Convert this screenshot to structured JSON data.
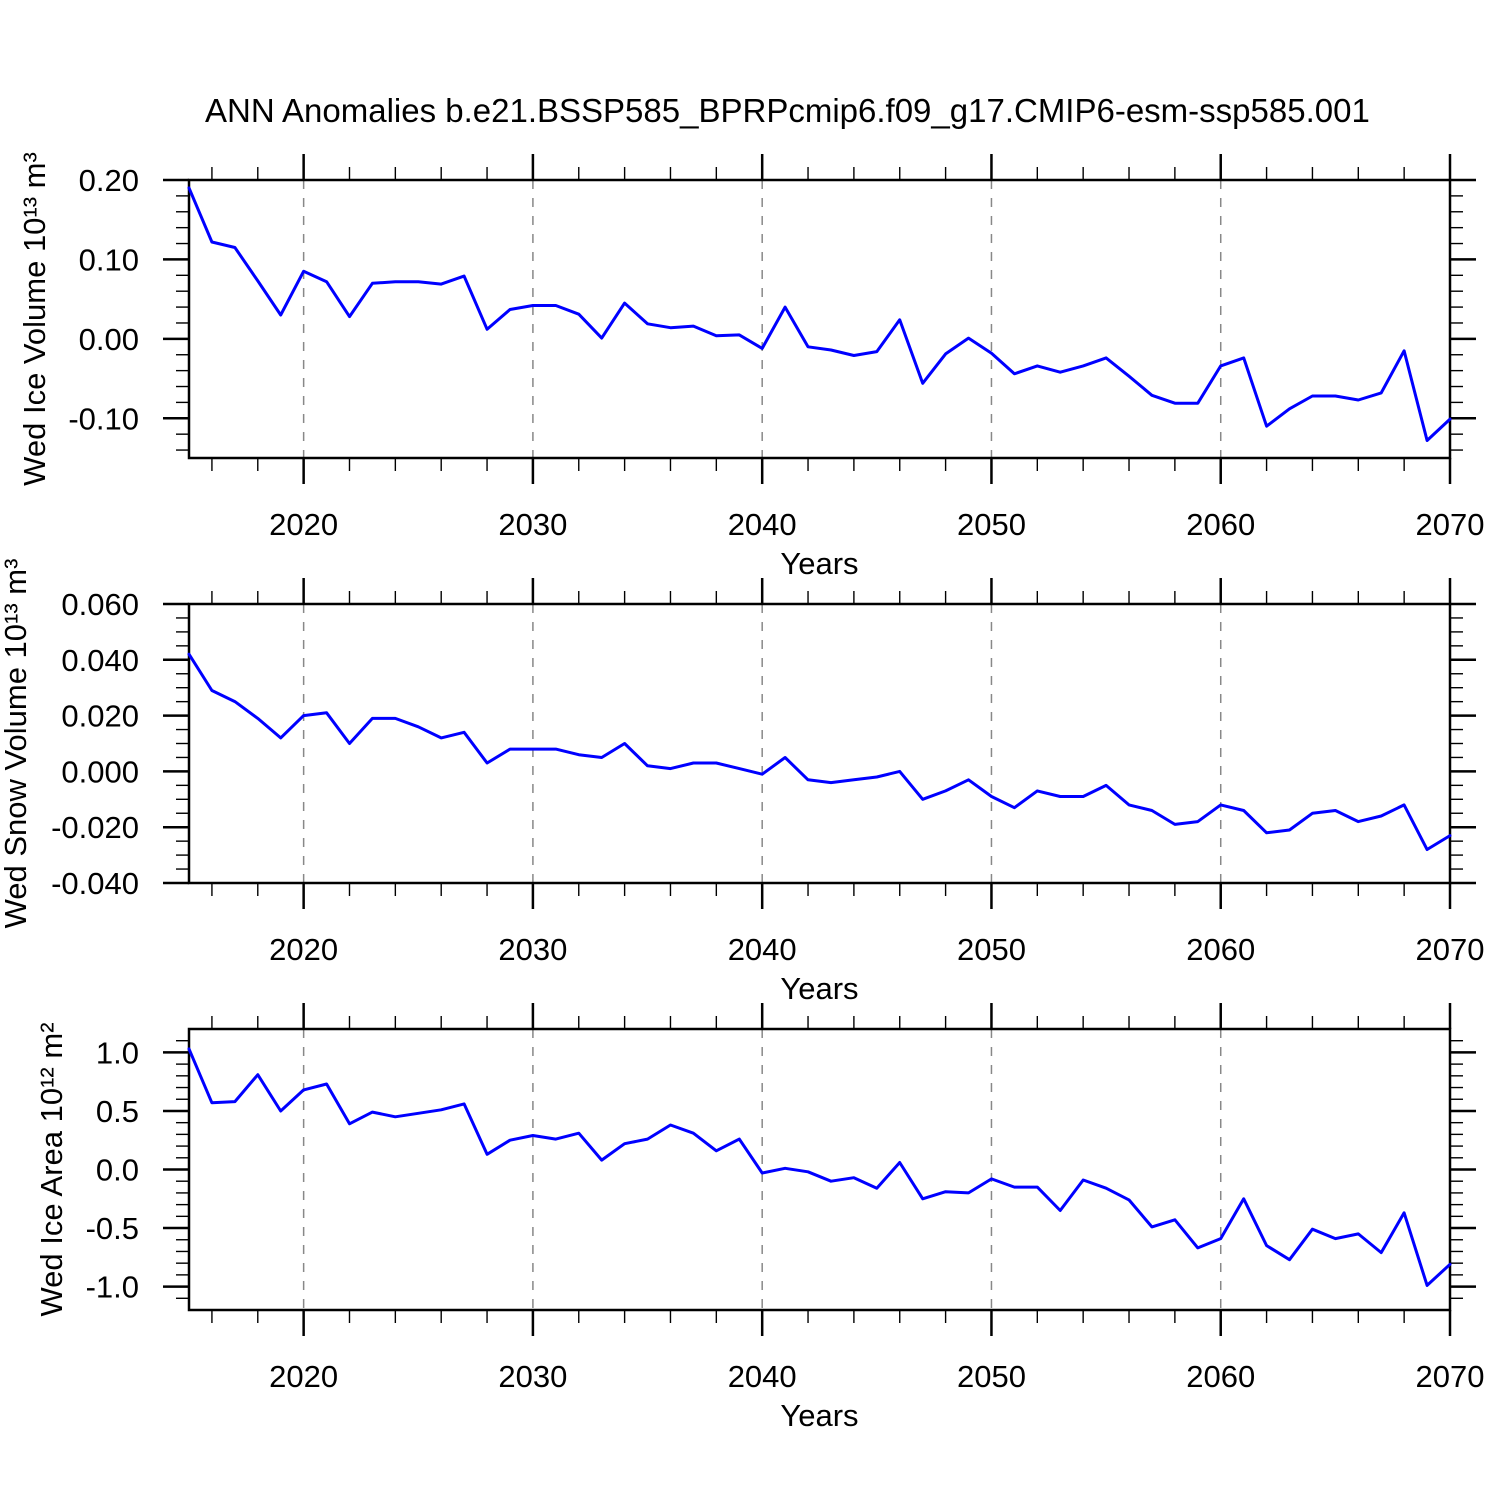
{
  "title": "ANN Anomalies b.e21.BSSP585_BPRPcmip6.f09_g17.CMIP6-esm-ssp585.001",
  "colors": {
    "line": "#0000ff",
    "frame": "#000000",
    "grid": "#888888",
    "text": "#000000"
  },
  "chart_data": [
    {
      "type": "line",
      "ylabel": "Wed Ice Volume 10¹³ m³",
      "xlabel": "Years",
      "x": [
        2015,
        2016,
        2017,
        2018,
        2019,
        2020,
        2021,
        2022,
        2023,
        2024,
        2025,
        2026,
        2027,
        2028,
        2029,
        2030,
        2031,
        2032,
        2033,
        2034,
        2035,
        2036,
        2037,
        2038,
        2039,
        2040,
        2041,
        2042,
        2043,
        2044,
        2045,
        2046,
        2047,
        2048,
        2049,
        2050,
        2051,
        2052,
        2053,
        2054,
        2055,
        2056,
        2057,
        2058,
        2059,
        2060,
        2061,
        2062,
        2063,
        2064,
        2065,
        2066,
        2067,
        2068,
        2069,
        2070
      ],
      "values": [
        0.19,
        0.122,
        0.115,
        0.073,
        0.03,
        0.085,
        0.072,
        0.028,
        0.07,
        0.072,
        0.072,
        0.069,
        0.079,
        0.012,
        0.037,
        0.042,
        0.042,
        0.031,
        0.001,
        0.045,
        0.019,
        0.014,
        0.016,
        0.004,
        0.005,
        -0.012,
        0.04,
        -0.01,
        -0.014,
        -0.021,
        -0.016,
        0.024,
        -0.056,
        -0.019,
        0.001,
        -0.018,
        -0.044,
        -0.034,
        -0.042,
        -0.034,
        -0.024,
        -0.047,
        -0.071,
        -0.081,
        -0.081,
        -0.034,
        -0.024,
        -0.11,
        -0.088,
        -0.072,
        -0.072,
        -0.077,
        -0.068,
        -0.015,
        -0.128,
        -0.101
      ],
      "xlim": [
        2015,
        2070
      ],
      "ylim": [
        -0.15,
        0.2
      ],
      "yticks": [
        {
          "v": 0.2,
          "label": "0.20"
        },
        {
          "v": 0.1,
          "label": "0.10"
        },
        {
          "v": 0.0,
          "label": "0.00"
        },
        {
          "v": -0.1,
          "label": "-0.10"
        }
      ],
      "ytick_minor_step": 0.02,
      "xticks": [
        {
          "v": 2020,
          "label": "2020"
        },
        {
          "v": 2030,
          "label": "2030"
        },
        {
          "v": 2040,
          "label": "2040"
        },
        {
          "v": 2050,
          "label": "2050"
        },
        {
          "v": 2060,
          "label": "2060"
        },
        {
          "v": 2070,
          "label": "2070"
        }
      ],
      "xtick_minor_step": 2,
      "grid_x": [
        2020,
        2030,
        2040,
        2050,
        2060
      ],
      "grid_style": "vertical-dashed",
      "legend": null
    },
    {
      "type": "line",
      "ylabel": "Wed Snow Volume 10¹³ m³",
      "xlabel": "Years",
      "x": [
        2015,
        2016,
        2017,
        2018,
        2019,
        2020,
        2021,
        2022,
        2023,
        2024,
        2025,
        2026,
        2027,
        2028,
        2029,
        2030,
        2031,
        2032,
        2033,
        2034,
        2035,
        2036,
        2037,
        2038,
        2039,
        2040,
        2041,
        2042,
        2043,
        2044,
        2045,
        2046,
        2047,
        2048,
        2049,
        2050,
        2051,
        2052,
        2053,
        2054,
        2055,
        2056,
        2057,
        2058,
        2059,
        2060,
        2061,
        2062,
        2063,
        2064,
        2065,
        2066,
        2067,
        2068,
        2069,
        2070
      ],
      "values": [
        0.042,
        0.029,
        0.025,
        0.019,
        0.012,
        0.02,
        0.021,
        0.01,
        0.019,
        0.019,
        0.016,
        0.012,
        0.014,
        0.003,
        0.008,
        0.008,
        0.008,
        0.006,
        0.005,
        0.01,
        0.002,
        0.001,
        0.003,
        0.003,
        0.001,
        -0.001,
        0.005,
        -0.003,
        -0.004,
        -0.003,
        -0.002,
        0.0,
        -0.01,
        -0.007,
        -0.003,
        -0.009,
        -0.013,
        -0.007,
        -0.009,
        -0.009,
        -0.005,
        -0.012,
        -0.014,
        -0.019,
        -0.018,
        -0.012,
        -0.014,
        -0.022,
        -0.021,
        -0.015,
        -0.014,
        -0.018,
        -0.016,
        -0.012,
        -0.028,
        -0.023
      ],
      "xlim": [
        2015,
        2070
      ],
      "ylim": [
        -0.04,
        0.06
      ],
      "yticks": [
        {
          "v": 0.06,
          "label": "0.060"
        },
        {
          "v": 0.04,
          "label": "0.040"
        },
        {
          "v": 0.02,
          "label": "0.020"
        },
        {
          "v": 0.0,
          "label": "0.000"
        },
        {
          "v": -0.02,
          "label": "-0.020"
        },
        {
          "v": -0.04,
          "label": "-0.040"
        }
      ],
      "ytick_minor_step": 0.005,
      "xticks": [
        {
          "v": 2020,
          "label": "2020"
        },
        {
          "v": 2030,
          "label": "2030"
        },
        {
          "v": 2040,
          "label": "2040"
        },
        {
          "v": 2050,
          "label": "2050"
        },
        {
          "v": 2060,
          "label": "2060"
        },
        {
          "v": 2070,
          "label": "2070"
        }
      ],
      "xtick_minor_step": 2,
      "grid_x": [
        2020,
        2030,
        2040,
        2050,
        2060
      ],
      "grid_style": "vertical-dashed",
      "legend": null
    },
    {
      "type": "line",
      "ylabel": "Wed Ice Area 10¹² m²",
      "xlabel": "Years",
      "x": [
        2015,
        2016,
        2017,
        2018,
        2019,
        2020,
        2021,
        2022,
        2023,
        2024,
        2025,
        2026,
        2027,
        2028,
        2029,
        2030,
        2031,
        2032,
        2033,
        2034,
        2035,
        2036,
        2037,
        2038,
        2039,
        2040,
        2041,
        2042,
        2043,
        2044,
        2045,
        2046,
        2047,
        2048,
        2049,
        2050,
        2051,
        2052,
        2053,
        2054,
        2055,
        2056,
        2057,
        2058,
        2059,
        2060,
        2061,
        2062,
        2063,
        2064,
        2065,
        2066,
        2067,
        2068,
        2069,
        2070
      ],
      "values": [
        1.03,
        0.57,
        0.58,
        0.81,
        0.5,
        0.68,
        0.73,
        0.39,
        0.49,
        0.45,
        0.48,
        0.51,
        0.56,
        0.13,
        0.25,
        0.29,
        0.26,
        0.31,
        0.08,
        0.22,
        0.26,
        0.38,
        0.31,
        0.16,
        0.26,
        -0.03,
        0.01,
        -0.02,
        -0.1,
        -0.07,
        -0.16,
        0.06,
        -0.25,
        -0.19,
        -0.2,
        -0.08,
        -0.15,
        -0.15,
        -0.35,
        -0.09,
        -0.16,
        -0.26,
        -0.49,
        -0.43,
        -0.67,
        -0.59,
        -0.25,
        -0.65,
        -0.77,
        -0.51,
        -0.59,
        -0.55,
        -0.71,
        -0.37,
        -0.99,
        -0.81
      ],
      "xlim": [
        2015,
        2070
      ],
      "ylim": [
        -1.2,
        1.2
      ],
      "yticks": [
        {
          "v": 1.0,
          "label": "1.0"
        },
        {
          "v": 0.5,
          "label": "0.5"
        },
        {
          "v": 0.0,
          "label": "0.0"
        },
        {
          "v": -0.5,
          "label": "-0.5"
        },
        {
          "v": -1.0,
          "label": "-1.0"
        }
      ],
      "ytick_minor_step": 0.1,
      "xticks": [
        {
          "v": 2020,
          "label": "2020"
        },
        {
          "v": 2030,
          "label": "2030"
        },
        {
          "v": 2040,
          "label": "2040"
        },
        {
          "v": 2050,
          "label": "2050"
        },
        {
          "v": 2060,
          "label": "2060"
        },
        {
          "v": 2070,
          "label": "2070"
        }
      ],
      "xtick_minor_step": 2,
      "grid_x": [
        2020,
        2030,
        2040,
        2050,
        2060
      ],
      "grid_style": "vertical-dashed",
      "legend": null
    }
  ]
}
